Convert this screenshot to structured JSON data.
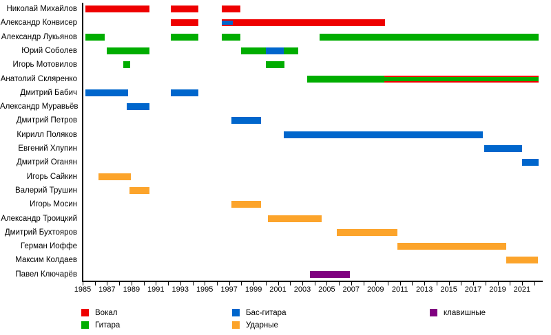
{
  "chart_data": {
    "type": "timeline-gantt",
    "title": "",
    "description": "Band members timeline: colored bars per member across years",
    "x_axis": {
      "min": 1985,
      "max": 2022.5,
      "tick_start_year": 1985,
      "tick_end_year": 2022,
      "tick_interval": 1,
      "label_interval": 2,
      "label_years": [
        "1985",
        "1987",
        "1989",
        "1991",
        "1993",
        "1995",
        "1997",
        "1999",
        "2001",
        "2003",
        "2005",
        "2007",
        "2009",
        "2011",
        "2013",
        "2015",
        "2017",
        "2019",
        "2021"
      ]
    },
    "roles": {
      "vocal": {
        "label": "Вокал",
        "color": "#ee0000"
      },
      "guitar": {
        "label": "Гитара",
        "color": "#00ad00"
      },
      "bass": {
        "label": "Бас-гитара",
        "color": "#0066cc"
      },
      "drums": {
        "label": "Ударные",
        "color": "#fca42b"
      },
      "keys": {
        "label": "клавишные",
        "color": "#800080"
      }
    },
    "legend": [
      {
        "role": "vocal",
        "col": 0,
        "row": 0
      },
      {
        "role": "guitar",
        "col": 0,
        "row": 1
      },
      {
        "role": "bass",
        "col": 1,
        "row": 0
      },
      {
        "role": "drums",
        "col": 1,
        "row": 1
      },
      {
        "role": "keys",
        "col": 2,
        "row": 0
      }
    ],
    "members": [
      {
        "name": "Николай Михайлов",
        "segments": [
          {
            "start": 1985.2,
            "end": 1990.5,
            "role": "vocal"
          },
          {
            "start": 1992.2,
            "end": 1994.5,
            "role": "vocal"
          },
          {
            "start": 1996.4,
            "end": 1997.9,
            "role": "vocal"
          }
        ]
      },
      {
        "name": "Александр Конвисер",
        "segments": [
          {
            "start": 1992.2,
            "end": 1994.5,
            "role": "vocal"
          },
          {
            "start": 1996.4,
            "end": 2009.8,
            "role": "vocal",
            "overlay": {
              "role": "bass",
              "start": 1996.4,
              "end": 1997.3
            }
          }
        ]
      },
      {
        "name": "Александр Лукьянов",
        "segments": [
          {
            "start": 1985.2,
            "end": 1986.8,
            "role": "guitar"
          },
          {
            "start": 1992.2,
            "end": 1994.5,
            "role": "guitar"
          },
          {
            "start": 1996.4,
            "end": 1997.9,
            "role": "guitar"
          },
          {
            "start": 2004.4,
            "end": 2022.35,
            "role": "guitar"
          }
        ]
      },
      {
        "name": "Юрий Соболев",
        "segments": [
          {
            "start": 1987.0,
            "end": 1990.5,
            "role": "guitar"
          },
          {
            "start": 1998.0,
            "end": 2000.0,
            "role": "guitar"
          },
          {
            "start": 2000.0,
            "end": 2001.5,
            "role": "bass"
          },
          {
            "start": 2001.5,
            "end": 2002.65,
            "role": "guitar"
          }
        ]
      },
      {
        "name": "Игорь Мотовилов",
        "segments": [
          {
            "start": 1988.3,
            "end": 1988.9,
            "role": "guitar"
          },
          {
            "start": 2000.0,
            "end": 2001.55,
            "role": "guitar"
          }
        ]
      },
      {
        "name": "Анатолий Скляренко",
        "segments": [
          {
            "start": 2003.4,
            "end": 2009.7,
            "role": "guitar"
          },
          {
            "start": 2009.7,
            "end": 2022.35,
            "role": "guitar",
            "edge_stripes": "vocal"
          }
        ]
      },
      {
        "name": "Дмитрий Бабич",
        "segments": [
          {
            "start": 1985.2,
            "end": 1988.7,
            "role": "bass"
          },
          {
            "start": 1992.2,
            "end": 1994.5,
            "role": "bass"
          }
        ]
      },
      {
        "name": "Александр Муравьёв",
        "segments": [
          {
            "start": 1988.6,
            "end": 1990.5,
            "role": "bass"
          }
        ]
      },
      {
        "name": "Дмитрий Петров",
        "segments": [
          {
            "start": 1997.2,
            "end": 1999.6,
            "role": "bass"
          }
        ]
      },
      {
        "name": "Кирилл Поляков",
        "segments": [
          {
            "start": 2001.5,
            "end": 2017.8,
            "role": "bass"
          }
        ]
      },
      {
        "name": "Евгений Хлупин",
        "segments": [
          {
            "start": 2017.9,
            "end": 2021.0,
            "role": "bass"
          }
        ]
      },
      {
        "name": "Дмитрий Оганян",
        "segments": [
          {
            "start": 2021.0,
            "end": 2022.35,
            "role": "bass"
          }
        ]
      },
      {
        "name": "Игорь Сайкин",
        "segments": [
          {
            "start": 1986.3,
            "end": 1988.95,
            "role": "drums"
          }
        ]
      },
      {
        "name": "Валерий Трушин",
        "segments": [
          {
            "start": 1988.85,
            "end": 1990.5,
            "role": "drums"
          }
        ]
      },
      {
        "name": "Игорь Мосин",
        "segments": [
          {
            "start": 1997.2,
            "end": 1999.6,
            "role": "drums"
          }
        ]
      },
      {
        "name": "Александр Троицкий",
        "segments": [
          {
            "start": 2000.2,
            "end": 2004.6,
            "role": "drums"
          }
        ]
      },
      {
        "name": "Дмитрий Бухтояров",
        "segments": [
          {
            "start": 2005.8,
            "end": 2010.8,
            "role": "drums"
          }
        ]
      },
      {
        "name": "Герман Иоффе",
        "segments": [
          {
            "start": 2010.8,
            "end": 2019.7,
            "role": "drums"
          }
        ]
      },
      {
        "name": "Максим Колдаев",
        "segments": [
          {
            "start": 2019.7,
            "end": 2022.3,
            "role": "drums"
          }
        ]
      },
      {
        "name": "Павел Ключарёв",
        "segments": [
          {
            "start": 2003.6,
            "end": 2006.9,
            "role": "keys"
          }
        ]
      }
    ]
  }
}
